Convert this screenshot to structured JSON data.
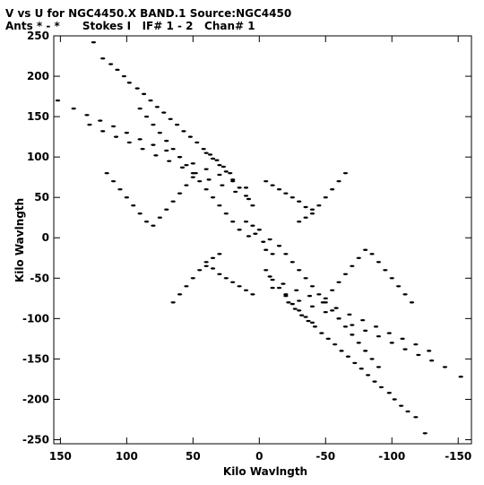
{
  "chart_data": {
    "type": "scatter",
    "title": "V vs U for NGC4450.X BAND.1   Source:NGC4450",
    "subtitle": "Ants * - *      Stokes I   IF# 1 - 2   Chan# 1",
    "xlabel": "Kilo Wavlngth",
    "ylabel": "Kilo Wavlngth",
    "xlim": [
      155,
      -160
    ],
    "ylim": [
      -255,
      250
    ],
    "x_ticks": [
      150,
      100,
      50,
      0,
      -50,
      -100,
      -150
    ],
    "x_tick_labels": [
      "150",
      "100",
      "50",
      "0",
      "-50",
      "-100",
      "-150"
    ],
    "y_ticks": [
      250,
      200,
      150,
      100,
      50,
      0,
      -50,
      -100,
      -150,
      -200,
      -250
    ],
    "y_tick_labels": [
      "250",
      "200",
      "150",
      "100",
      "50",
      "0",
      "-50",
      "-100",
      "-150",
      "-200",
      "-250"
    ],
    "grid": false,
    "marker_color": "#000000",
    "points": [
      [
        125,
        242
      ],
      [
        118,
        222
      ],
      [
        112,
        215
      ],
      [
        107,
        208
      ],
      [
        102,
        200
      ],
      [
        98,
        192
      ],
      [
        92,
        185
      ],
      [
        87,
        178
      ],
      [
        82,
        170
      ],
      [
        77,
        162
      ],
      [
        72,
        155
      ],
      [
        67,
        147
      ],
      [
        62,
        140
      ],
      [
        57,
        132
      ],
      [
        52,
        125
      ],
      [
        47,
        118
      ],
      [
        42,
        110
      ],
      [
        37,
        103
      ],
      [
        32,
        96
      ],
      [
        27,
        88
      ],
      [
        22,
        80
      ],
      [
        -22,
        -80
      ],
      [
        -27,
        -88
      ],
      [
        -32,
        -96
      ],
      [
        -37,
        -103
      ],
      [
        -42,
        -110
      ],
      [
        -47,
        -118
      ],
      [
        -52,
        -125
      ],
      [
        -57,
        -132
      ],
      [
        -62,
        -140
      ],
      [
        -67,
        -147
      ],
      [
        -72,
        -155
      ],
      [
        -77,
        -162
      ],
      [
        -82,
        -170
      ],
      [
        -87,
        -178
      ],
      [
        -92,
        -185
      ],
      [
        -98,
        -192
      ],
      [
        -102,
        -200
      ],
      [
        -107,
        -208
      ],
      [
        -112,
        -215
      ],
      [
        -118,
        -222
      ],
      [
        -125,
        -242
      ],
      [
        152,
        170
      ],
      [
        140,
        160
      ],
      [
        130,
        152
      ],
      [
        120,
        145
      ],
      [
        110,
        138
      ],
      [
        100,
        130
      ],
      [
        90,
        122
      ],
      [
        80,
        115
      ],
      [
        70,
        108
      ],
      [
        60,
        100
      ],
      [
        50,
        92
      ],
      [
        40,
        85
      ],
      [
        30,
        78
      ],
      [
        20,
        70
      ],
      [
        10,
        62
      ],
      [
        -10,
        -62
      ],
      [
        -20,
        -70
      ],
      [
        -30,
        -78
      ],
      [
        -40,
        -85
      ],
      [
        -50,
        -92
      ],
      [
        -60,
        -100
      ],
      [
        -70,
        -108
      ],
      [
        -80,
        -115
      ],
      [
        -90,
        -122
      ],
      [
        -100,
        -130
      ],
      [
        -110,
        -138
      ],
      [
        -120,
        -145
      ],
      [
        -130,
        -152
      ],
      [
        -140,
        -160
      ],
      [
        -152,
        -172
      ],
      [
        128,
        140
      ],
      [
        118,
        132
      ],
      [
        108,
        125
      ],
      [
        98,
        118
      ],
      [
        88,
        110
      ],
      [
        78,
        102
      ],
      [
        68,
        95
      ],
      [
        58,
        87
      ],
      [
        48,
        80
      ],
      [
        38,
        72
      ],
      [
        28,
        65
      ],
      [
        18,
        57
      ],
      [
        8,
        48
      ],
      [
        -8,
        -48
      ],
      [
        -18,
        -57
      ],
      [
        -28,
        -65
      ],
      [
        -38,
        -72
      ],
      [
        -48,
        -80
      ],
      [
        -58,
        -87
      ],
      [
        -68,
        -95
      ],
      [
        -78,
        -102
      ],
      [
        -88,
        -110
      ],
      [
        -98,
        -118
      ],
      [
        -108,
        -125
      ],
      [
        -118,
        -132
      ],
      [
        -128,
        -140
      ],
      [
        90,
        160
      ],
      [
        85,
        150
      ],
      [
        80,
        140
      ],
      [
        75,
        130
      ],
      [
        70,
        120
      ],
      [
        65,
        110
      ],
      [
        60,
        100
      ],
      [
        55,
        90
      ],
      [
        50,
        80
      ],
      [
        45,
        70
      ],
      [
        40,
        60
      ],
      [
        35,
        50
      ],
      [
        30,
        40
      ],
      [
        25,
        30
      ],
      [
        20,
        20
      ],
      [
        15,
        10
      ],
      [
        -15,
        -10
      ],
      [
        -20,
        -20
      ],
      [
        -25,
        -30
      ],
      [
        -30,
        -40
      ],
      [
        -35,
        -50
      ],
      [
        -40,
        -60
      ],
      [
        -45,
        -70
      ],
      [
        -50,
        -80
      ],
      [
        -55,
        -90
      ],
      [
        -60,
        -100
      ],
      [
        -65,
        -110
      ],
      [
        -70,
        -120
      ],
      [
        -75,
        -130
      ],
      [
        -80,
        -140
      ],
      [
        -85,
        -150
      ],
      [
        -90,
        -160
      ],
      [
        40,
        105
      ],
      [
        35,
        98
      ],
      [
        30,
        90
      ],
      [
        25,
        82
      ],
      [
        20,
        72
      ],
      [
        15,
        62
      ],
      [
        10,
        52
      ],
      [
        5,
        40
      ],
      [
        -5,
        -40
      ],
      [
        -10,
        -52
      ],
      [
        -15,
        -62
      ],
      [
        -20,
        -72
      ],
      [
        -25,
        -82
      ],
      [
        -30,
        -90
      ],
      [
        -35,
        -98
      ],
      [
        -40,
        -105
      ],
      [
        -5,
        70
      ],
      [
        -10,
        65
      ],
      [
        -15,
        60
      ],
      [
        -20,
        55
      ],
      [
        -25,
        50
      ],
      [
        -30,
        45
      ],
      [
        -35,
        38
      ],
      [
        -40,
        30
      ],
      [
        5,
        -70
      ],
      [
        10,
        -65
      ],
      [
        15,
        -60
      ],
      [
        20,
        -55
      ],
      [
        25,
        -50
      ],
      [
        30,
        -45
      ],
      [
        35,
        -38
      ],
      [
        40,
        -30
      ],
      [
        50,
        -50
      ],
      [
        55,
        -60
      ],
      [
        60,
        -70
      ],
      [
        65,
        -80
      ],
      [
        45,
        -40
      ],
      [
        40,
        -35
      ],
      [
        35,
        -25
      ],
      [
        30,
        -20
      ],
      [
        -50,
        50
      ],
      [
        -55,
        60
      ],
      [
        -60,
        70
      ],
      [
        -65,
        80
      ],
      [
        -45,
        40
      ],
      [
        -40,
        35
      ],
      [
        -35,
        25
      ],
      [
        -30,
        20
      ],
      [
        0,
        10
      ],
      [
        5,
        15
      ],
      [
        -5,
        -15
      ],
      [
        10,
        20
      ],
      [
        -10,
        -20
      ],
      [
        3,
        5
      ],
      [
        -3,
        -5
      ],
      [
        8,
        2
      ],
      [
        -8,
        -2
      ],
      [
        65,
        45
      ],
      [
        70,
        35
      ],
      [
        75,
        25
      ],
      [
        80,
        15
      ],
      [
        60,
        55
      ],
      [
        55,
        65
      ],
      [
        50,
        75
      ],
      [
        -65,
        -45
      ],
      [
        -70,
        -35
      ],
      [
        -75,
        -25
      ],
      [
        -80,
        -15
      ],
      [
        -60,
        -55
      ],
      [
        -55,
        -65
      ],
      [
        -50,
        -75
      ],
      [
        -95,
        -40
      ],
      [
        -90,
        -30
      ],
      [
        -85,
        -20
      ],
      [
        -100,
        -50
      ],
      [
        -105,
        -60
      ],
      [
        -110,
        -70
      ],
      [
        -115,
        -80
      ],
      [
        95,
        40
      ],
      [
        90,
        30
      ],
      [
        85,
        20
      ],
      [
        100,
        50
      ],
      [
        105,
        60
      ],
      [
        110,
        70
      ],
      [
        115,
        80
      ]
    ]
  }
}
